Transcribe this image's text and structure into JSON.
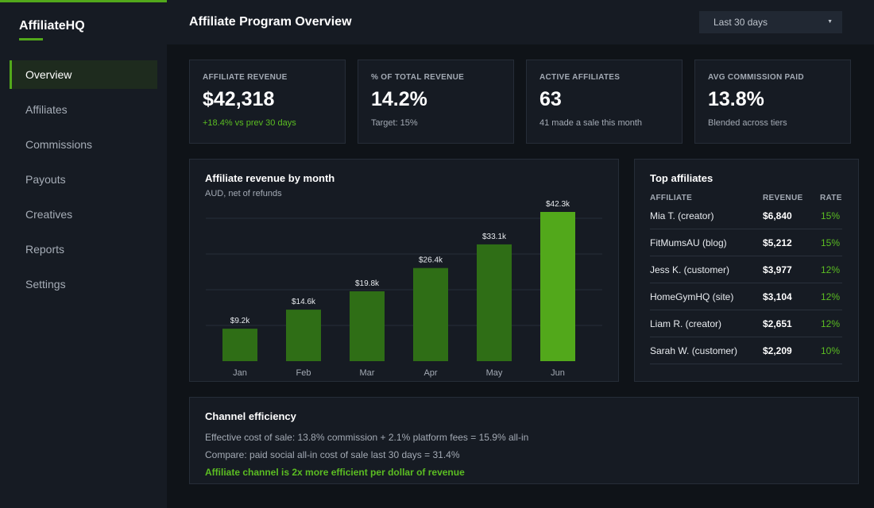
{
  "sidebar": {
    "brand": "AffiliateHQ",
    "items": [
      {
        "label": "Overview",
        "name": "overview",
        "active": true
      },
      {
        "label": "Affiliates",
        "name": "affiliates"
      },
      {
        "label": "Commissions",
        "name": "commissions"
      },
      {
        "label": "Payouts",
        "name": "payouts"
      },
      {
        "label": "Creatives",
        "name": "creatives"
      },
      {
        "label": "Reports",
        "name": "reports"
      },
      {
        "label": "Settings",
        "name": "settings"
      }
    ]
  },
  "header": {
    "title": "Affiliate Program Overview",
    "range": "Last 30 days"
  },
  "kpis": [
    {
      "label": "AFFILIATE REVENUE",
      "value": "$42,318",
      "sub": "+18.4% vs prev 30 days",
      "sub_positive": true
    },
    {
      "label": "% OF TOTAL REVENUE",
      "value": "14.2%",
      "sub": "Target: 15%"
    },
    {
      "label": "ACTIVE AFFILIATES",
      "value": "63",
      "sub": "41 made a sale this month"
    },
    {
      "label": "AVG COMMISSION PAID",
      "value": "13.8%",
      "sub": "Blended across tiers"
    }
  ],
  "revenue_panel": {
    "title": "Affiliate revenue by month",
    "subtitle": "AUD, net of refunds"
  },
  "chart_data": {
    "type": "bar",
    "categories": [
      "Jan",
      "Feb",
      "Mar",
      "Apr",
      "May",
      "Jun"
    ],
    "values": [
      9.2,
      14.6,
      19.8,
      26.4,
      33.1,
      42.3
    ],
    "data_labels": [
      "$9.2k",
      "$14.6k",
      "$19.8k",
      "$26.4k",
      "$33.1k",
      "$42.3k"
    ],
    "title": "Affiliate revenue by month",
    "subtitle": "AUD, net of refunds",
    "ylim": [
      0,
      45
    ],
    "grid": true,
    "highlight_index": 5,
    "colors": {
      "bar": "#2f6e16",
      "highlight": "#52a81b"
    }
  },
  "top_affiliates": {
    "title": "Top affiliates",
    "headers": {
      "affiliate": "AFFILIATE",
      "revenue": "REVENUE",
      "rate": "RATE"
    },
    "rows": [
      {
        "name": "Mia T. (creator)",
        "revenue": "$6,840",
        "rate": "15%"
      },
      {
        "name": "FitMumsAU (blog)",
        "revenue": "$5,212",
        "rate": "15%"
      },
      {
        "name": "Jess K. (customer)",
        "revenue": "$3,977",
        "rate": "12%"
      },
      {
        "name": "HomeGymHQ (site)",
        "revenue": "$3,104",
        "rate": "12%"
      },
      {
        "name": "Liam R. (creator)",
        "revenue": "$2,651",
        "rate": "12%"
      },
      {
        "name": "Sarah W. (customer)",
        "revenue": "$2,209",
        "rate": "10%"
      }
    ]
  },
  "efficiency": {
    "title": "Channel efficiency",
    "line1": "Effective cost of sale: 13.8% commission + 2.1% platform fees = 15.9% all-in",
    "line2": "Compare: paid social all-in cost of sale last 30 days = 31.4%",
    "line3": "Affiliate channel is 2x more efficient per dollar of revenue"
  },
  "colors": {
    "accent": "#52a81b",
    "positive": "#5bbd22",
    "background": "#0f1318",
    "panel": "#161b23"
  },
  "icons": {
    "range_caret": "caret-down-icon"
  }
}
